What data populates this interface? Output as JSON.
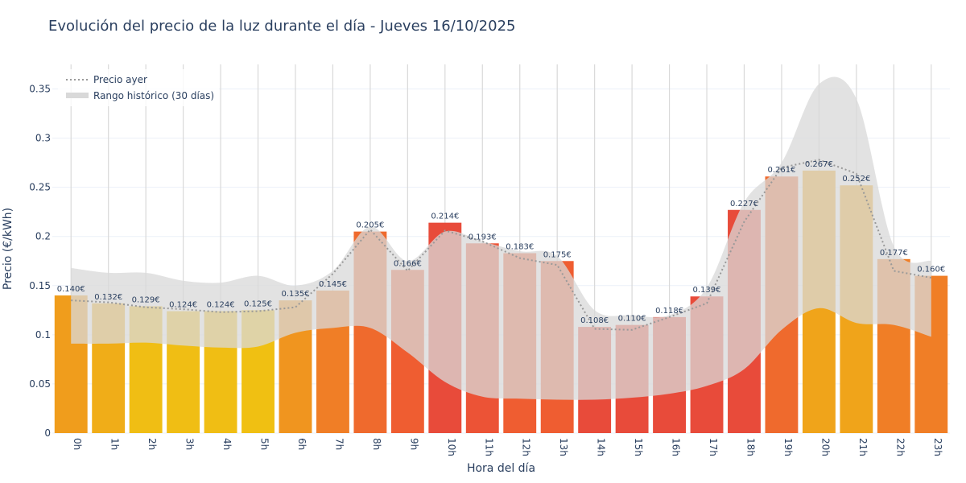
{
  "chart_data": {
    "type": "bar",
    "title": "Evolución del precio de la luz durante el día - Jueves 16/10/2025",
    "xlabel": "Hora del día",
    "ylabel": "Precio (€/kWh)",
    "ylim": [
      0,
      0.375
    ],
    "yticks": [
      0,
      0.05,
      0.1,
      0.15,
      0.2,
      0.25,
      0.3,
      0.35
    ],
    "ytick_labels": [
      "0",
      "0.05",
      "0.1",
      "0.15",
      "0.2",
      "0.25",
      "0.3",
      "0.35"
    ],
    "grid": true,
    "legend_position": "top-left",
    "categories": [
      "0h",
      "1h",
      "2h",
      "3h",
      "4h",
      "5h",
      "6h",
      "7h",
      "8h",
      "9h",
      "10h",
      "11h",
      "12h",
      "13h",
      "14h",
      "15h",
      "16h",
      "17h",
      "18h",
      "19h",
      "20h",
      "21h",
      "22h",
      "23h"
    ],
    "values": [
      0.14,
      0.132,
      0.129,
      0.124,
      0.124,
      0.125,
      0.135,
      0.145,
      0.205,
      0.166,
      0.214,
      0.193,
      0.183,
      0.175,
      0.108,
      0.11,
      0.118,
      0.139,
      0.227,
      0.261,
      0.267,
      0.252,
      0.177,
      0.16
    ],
    "value_labels": [
      "0.140€",
      "0.132€",
      "0.129€",
      "0.124€",
      "0.124€",
      "0.125€",
      "0.135€",
      "0.145€",
      "0.205€",
      "0.166€",
      "0.214€",
      "0.193€",
      "0.183€",
      "0.175€",
      "0.108€",
      "0.110€",
      "0.118€",
      "0.139€",
      "0.227€",
      "0.261€",
      "0.267€",
      "0.252€",
      "0.177€",
      "0.160€"
    ],
    "bar_colors": [
      "#f09d1c",
      "#f0ad18",
      "#f0be14",
      "#f0be14",
      "#f0be14",
      "#f0c012",
      "#f0951f",
      "#f07e26",
      "#ef6a2d",
      "#ef5d31",
      "#e84b3a",
      "#ec5336",
      "#ef5d31",
      "#ef5d31",
      "#e84b3a",
      "#e84b3a",
      "#e84b3a",
      "#e84b3a",
      "#e84b3a",
      "#ef6a2d",
      "#f0a41a",
      "#f0a41a",
      "#f07e26",
      "#f07e26"
    ],
    "series": [
      {
        "name": "Precio ayer",
        "values": [
          0.135,
          0.133,
          0.128,
          0.126,
          0.123,
          0.124,
          0.128,
          0.162,
          0.207,
          0.165,
          0.206,
          0.195,
          0.178,
          0.171,
          0.106,
          0.105,
          0.118,
          0.132,
          0.215,
          0.27,
          0.278,
          0.264,
          0.165,
          0.158
        ],
        "color": "#999999",
        "style": "dotted"
      },
      {
        "name": "Rango histórico (30 días)",
        "type": "band",
        "upper": [
          0.168,
          0.163,
          0.163,
          0.155,
          0.153,
          0.16,
          0.15,
          0.165,
          0.21,
          0.175,
          0.205,
          0.195,
          0.185,
          0.18,
          0.125,
          0.12,
          0.12,
          0.148,
          0.235,
          0.275,
          0.355,
          0.34,
          0.19,
          0.175
        ],
        "lower": [
          0.091,
          0.091,
          0.092,
          0.089,
          0.087,
          0.088,
          0.102,
          0.107,
          0.107,
          0.082,
          0.052,
          0.037,
          0.035,
          0.034,
          0.034,
          0.036,
          0.04,
          0.048,
          0.065,
          0.105,
          0.127,
          0.112,
          0.11,
          0.098
        ],
        "color": "#d9d9d9"
      }
    ]
  }
}
